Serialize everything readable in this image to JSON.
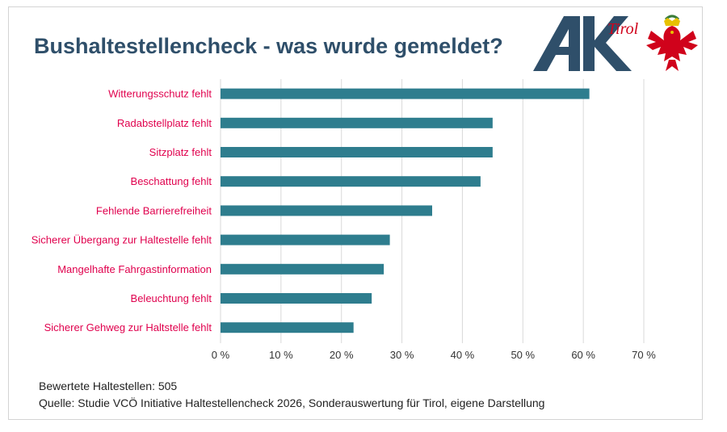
{
  "title": "Bushaltestellencheck - was wurde gemeldet?",
  "logo": {
    "ak_text": "AK",
    "tirol_text": "Tirol",
    "eagle": "tyrol-eagle-crest"
  },
  "colors": {
    "bar": "#2e7d8e",
    "label": "#e0004d",
    "title": "#2f4f6a",
    "grid": "#d9d9d9",
    "axis": "#333333",
    "logo_ak": "#2f4f6a",
    "logo_red": "#d0021b"
  },
  "chart_data": {
    "type": "bar",
    "orientation": "horizontal",
    "categories": [
      "Witterungsschutz fehlt",
      "Radabstellplatz fehlt",
      "Sitzplatz fehlt",
      "Beschattung fehlt",
      "Fehlende Barrierefreiheit",
      "Sicherer Übergang zur Haltestelle fehlt",
      "Mangelhafte Fahrgastinformation",
      "Beleuchtung fehlt",
      "Sicherer Gehweg zur Haltstelle fehlt"
    ],
    "values": [
      61,
      45,
      45,
      43,
      35,
      28,
      27,
      25,
      22
    ],
    "xlim": [
      0,
      70
    ],
    "ticks": [
      0,
      10,
      20,
      30,
      40,
      50,
      60,
      70
    ],
    "tick_labels": [
      "0 %",
      "10 %",
      "20 %",
      "30 %",
      "40 %",
      "50 %",
      "60 %",
      "70 %"
    ],
    "grid": true,
    "xlabel": "",
    "ylabel": ""
  },
  "notes": {
    "count": "Bewertete Haltestellen: 505",
    "source": "Quelle: Studie VCÖ Initiative Haltestellencheck 2026, Sonderauswertung für Tirol, eigene Darstellung"
  }
}
